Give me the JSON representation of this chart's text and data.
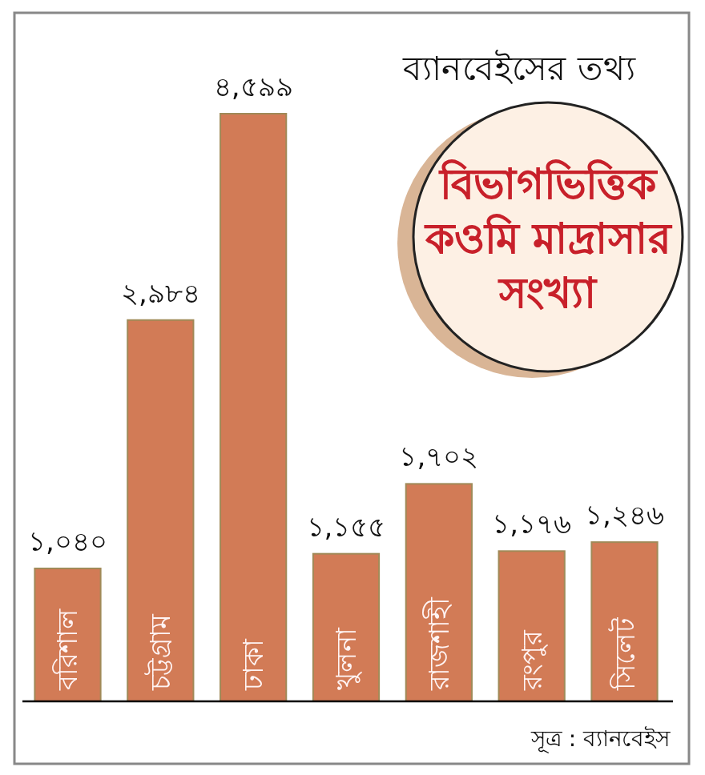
{
  "chart_data": {
    "type": "bar",
    "title": "বিভাগভিত্তিক\nকওমি মাদ্রাসার\nসংখ্যা",
    "subtitle": "ব্যানবেইসের তথ্য",
    "annotations": [
      "সূত্র : ব্যানবেইস"
    ],
    "categories": [
      "বরিশাল",
      "চট্টগ্রাম",
      "ঢাকা",
      "খুলনা",
      "রাজশাহী",
      "রংপুর",
      "সিলেট"
    ],
    "values": [
      1040,
      2984,
      4599,
      1155,
      1702,
      1176,
      1246
    ],
    "value_labels": [
      "১,০৪০",
      "২,৯৮৪",
      "৪,৫৯৯",
      "১,১৫৫",
      "১,৭০২",
      "১,১৭৬",
      "১,২৪৬"
    ],
    "color": "#d27b56"
  }
}
